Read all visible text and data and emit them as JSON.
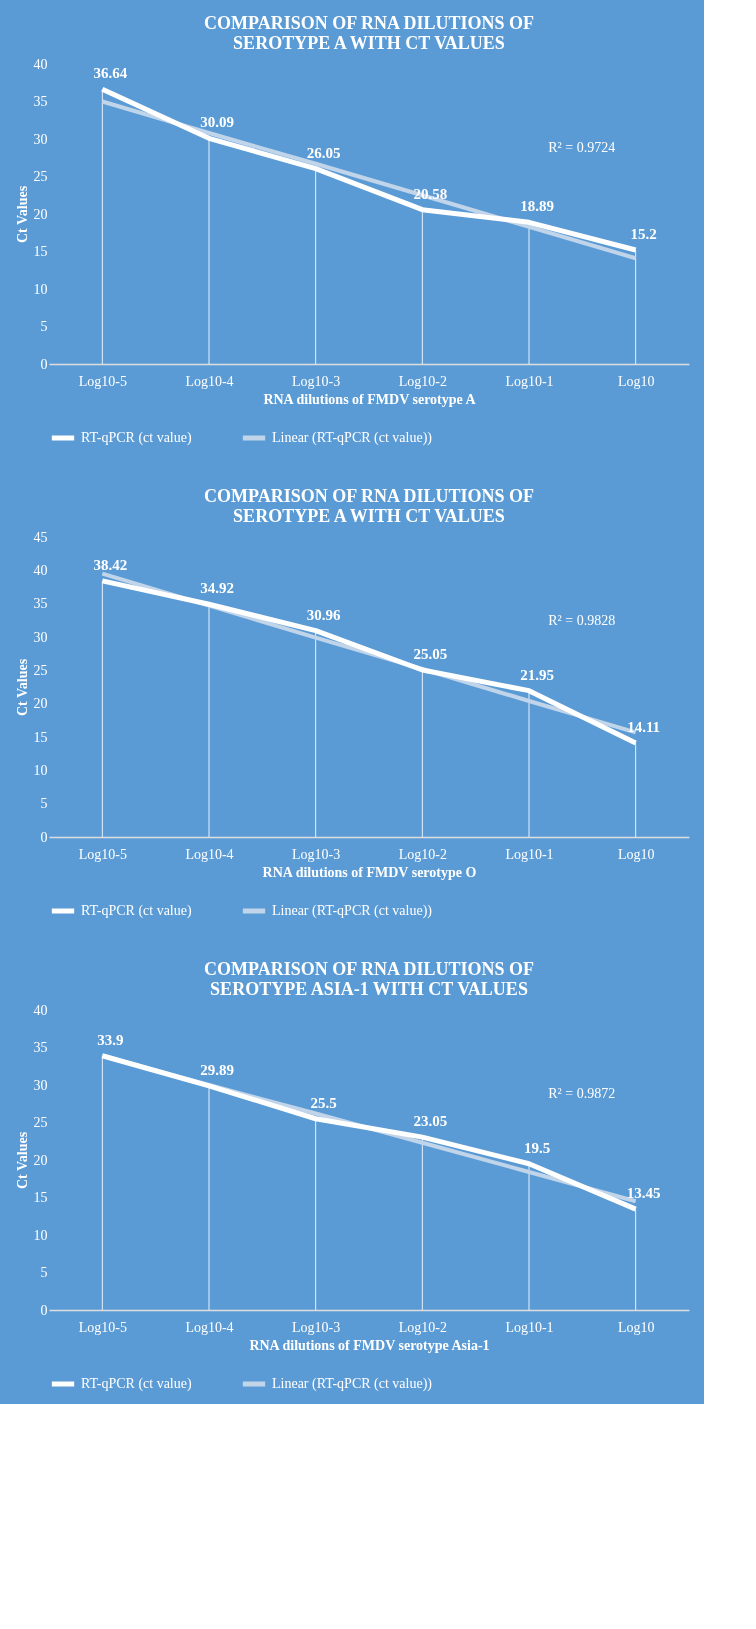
{
  "chart_data": [
    {
      "type": "line",
      "title": [
        "COMPARISON OF RNA DILUTIONS OF",
        "SEROTYPE A WITH CT VALUES"
      ],
      "xlabel": "RNA dilutions of FMDV serotype A",
      "ylabel": "Ct Values",
      "categories": [
        "Log10-5",
        "Log10-4",
        "Log10-3",
        "Log10-2",
        "Log10-1",
        "Log10"
      ],
      "series": [
        {
          "name": "RT-qPCR (ct value)",
          "color": "#ffffff",
          "values": [
            36.64,
            30.09,
            26.05,
            20.58,
            18.89,
            15.2
          ],
          "value_labels": [
            "36.64",
            "30.09",
            "26.05",
            "20.58",
            "18.89",
            "15.2"
          ]
        },
        {
          "name": "Linear (RT-qPCR (ct value))",
          "color": "#c0d4ea",
          "values": [
            35.0,
            30.8,
            26.7,
            22.5,
            18.3,
            14.1
          ]
        }
      ],
      "ylim": [
        0,
        40
      ],
      "yticks": [
        0,
        5,
        10,
        15,
        20,
        25,
        30,
        35,
        40
      ],
      "legend": "bottom",
      "grid": "x",
      "annotations": [
        "R² = 0.9724"
      ]
    },
    {
      "type": "line",
      "title": [
        "COMPARISON OF RNA DILUTIONS OF",
        "SEROTYPE A WITH CT VALUES"
      ],
      "xlabel": "RNA dilutions of FMDV serotype O",
      "ylabel": "Ct Values",
      "categories": [
        "Log10-5",
        "Log10-4",
        "Log10-3",
        "Log10-2",
        "Log10-1",
        "Log10"
      ],
      "series": [
        {
          "name": "RT-qPCR (ct value)",
          "color": "#ffffff",
          "values": [
            38.42,
            34.92,
            30.96,
            25.05,
            21.95,
            14.11
          ],
          "value_labels": [
            "38.42",
            "34.92",
            "30.96",
            "25.05",
            "21.95",
            "14.11"
          ]
        },
        {
          "name": "Linear (RT-qPCR (ct value))",
          "color": "#c0d4ea",
          "values": [
            39.5,
            34.7,
            29.9,
            25.2,
            20.4,
            15.7
          ]
        }
      ],
      "ylim": [
        0,
        45
      ],
      "yticks": [
        0,
        5,
        10,
        15,
        20,
        25,
        30,
        35,
        40,
        45
      ],
      "legend": "bottom",
      "grid": "x",
      "annotations": [
        "R² = 0.9828"
      ]
    },
    {
      "type": "line",
      "title": [
        "COMPARISON OF RNA DILUTIONS OF",
        "SEROTYPE ASIA-1 WITH CT VALUES"
      ],
      "xlabel": "RNA dilutions of FMDV serotype Asia-1",
      "ylabel": "Ct Values",
      "categories": [
        "Log10-5",
        "Log10-4",
        "Log10-3",
        "Log10-2",
        "Log10-1",
        "Log10"
      ],
      "series": [
        {
          "name": "RT-qPCR (ct value)",
          "color": "#ffffff",
          "values": [
            33.9,
            29.89,
            25.5,
            23.05,
            19.5,
            13.45
          ],
          "value_labels": [
            "33.9",
            "29.89",
            "25.5",
            "23.05",
            "19.5",
            "13.45"
          ]
        },
        {
          "name": "Linear (RT-qPCR (ct value))",
          "color": "#c0d4ea",
          "values": [
            33.9,
            30.0,
            26.2,
            22.3,
            18.4,
            14.5
          ]
        }
      ],
      "ylim": [
        0,
        40
      ],
      "yticks": [
        0,
        5,
        10,
        15,
        20,
        25,
        30,
        35,
        40
      ],
      "legend": "bottom",
      "grid": "x",
      "annotations": [
        "R² = 0.9872"
      ]
    }
  ]
}
